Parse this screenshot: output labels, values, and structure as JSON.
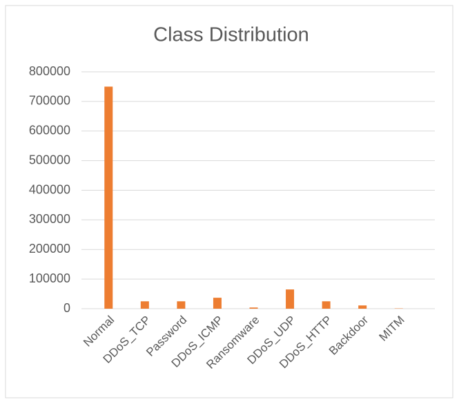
{
  "chart_data": {
    "type": "bar",
    "title": "Class Distribution",
    "categories": [
      "Normal",
      "DDoS_TCP",
      "Password",
      "DDoS_ICMP",
      "Ransomware",
      "DDoS_UDP",
      "DDoS_HTTP",
      "Backdoor",
      "MITM"
    ],
    "values": [
      750000,
      25000,
      25000,
      37000,
      4000,
      65000,
      25000,
      11000,
      1000
    ],
    "color": "#ed7d31",
    "ylim": [
      0,
      800000
    ],
    "yticks": [
      0,
      100000,
      200000,
      300000,
      400000,
      500000,
      600000,
      700000,
      800000
    ],
    "grid": true
  }
}
